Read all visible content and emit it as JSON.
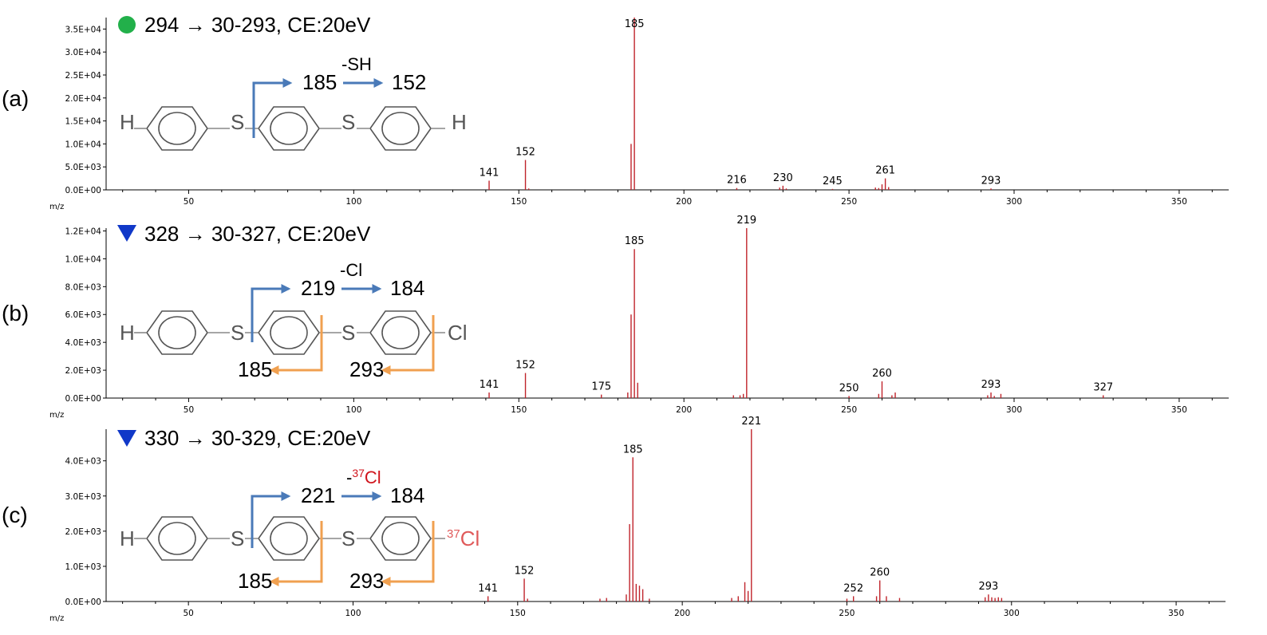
{
  "chart_data": [
    {
      "type": "bar",
      "panel_label": "(a)",
      "title": "294 → 30-293, CE:20eV",
      "marker": "green-circle",
      "xlabel": "m/z",
      "ylabel": "",
      "xlim": [
        25,
        365
      ],
      "ylim": [
        0,
        37500
      ],
      "xticks": [
        50,
        100,
        150,
        200,
        250,
        300,
        350
      ],
      "xtick_labels": [
        "50",
        "100",
        "150",
        "200",
        "250",
        "300",
        "350"
      ],
      "yticks": [
        0,
        5000,
        10000,
        15000,
        20000,
        25000,
        30000,
        35000
      ],
      "ytick_labels": [
        "0.0E+00",
        "5.0E+03",
        "1.0E+04",
        "1.5E+04",
        "2.0E+04",
        "2.5E+04",
        "3.0E+04",
        "3.5E+04"
      ],
      "x": [
        141,
        152,
        153,
        184,
        185,
        216,
        229,
        230,
        231,
        245,
        258,
        259,
        260,
        261,
        262,
        293
      ],
      "values": [
        2000,
        6500,
        300,
        10000,
        37500,
        400,
        500,
        900,
        300,
        200,
        500,
        400,
        1200,
        2500,
        600,
        300
      ],
      "peak_labels": [
        {
          "x": 141,
          "text": "141"
        },
        {
          "x": 152,
          "text": "152"
        },
        {
          "x": 185,
          "text": "185"
        },
        {
          "x": 216,
          "text": "216"
        },
        {
          "x": 230,
          "text": "230"
        },
        {
          "x": 245,
          "text": "245"
        },
        {
          "x": 261,
          "text": "261"
        },
        {
          "x": 293,
          "text": "293"
        }
      ],
      "structure": {
        "left_atom": "H",
        "linker1": "S",
        "linker2": "S",
        "right_atom": "H",
        "fragment_path": [
          "185",
          "152"
        ],
        "loss_label": "-SH",
        "orange_labels": []
      }
    },
    {
      "type": "bar",
      "panel_label": "(b)",
      "title": "328 → 30-327, CE:20eV",
      "marker": "blue-triangle",
      "xlabel": "m/z",
      "ylabel": "",
      "xlim": [
        25,
        365
      ],
      "ylim": [
        0,
        12200
      ],
      "xticks": [
        50,
        100,
        150,
        200,
        250,
        300,
        350
      ],
      "xtick_labels": [
        "50",
        "100",
        "150",
        "200",
        "250",
        "300",
        "350"
      ],
      "yticks": [
        0,
        2000,
        4000,
        6000,
        8000,
        10000,
        12000
      ],
      "ytick_labels": [
        "0.0E+00",
        "2.0E+03",
        "4.0E+03",
        "6.0E+03",
        "8.0E+03",
        "1.0E+04",
        "1.2E+04"
      ],
      "x": [
        141,
        152,
        175,
        183,
        184,
        185,
        186,
        215,
        217,
        218,
        219,
        250,
        259,
        260,
        263,
        264,
        292,
        293,
        294,
        296,
        327
      ],
      "values": [
        400,
        1800,
        250,
        400,
        6000,
        10700,
        1100,
        200,
        200,
        300,
        12200,
        150,
        300,
        1200,
        200,
        400,
        200,
        400,
        150,
        300,
        200
      ],
      "peak_labels": [
        {
          "x": 141,
          "text": "141"
        },
        {
          "x": 152,
          "text": "152"
        },
        {
          "x": 175,
          "text": "175"
        },
        {
          "x": 185,
          "text": "185"
        },
        {
          "x": 219,
          "text": "219"
        },
        {
          "x": 250,
          "text": "250"
        },
        {
          "x": 260,
          "text": "260"
        },
        {
          "x": 293,
          "text": "293"
        },
        {
          "x": 327,
          "text": "327"
        }
      ],
      "structure": {
        "left_atom": "H",
        "linker1": "S",
        "linker2": "S",
        "right_atom": "Cl",
        "fragment_path": [
          "219",
          "184"
        ],
        "loss_label": "-Cl",
        "orange_labels": [
          "185",
          "293"
        ]
      }
    },
    {
      "type": "bar",
      "panel_label": "(c)",
      "title": "330 → 30-329, CE:20eV",
      "marker": "blue-triangle",
      "xlabel": "m/z",
      "ylabel": "",
      "xlim": [
        25,
        365
      ],
      "ylim": [
        0,
        4900
      ],
      "xticks": [
        50,
        100,
        150,
        200,
        250,
        300,
        350
      ],
      "xtick_labels": [
        "50",
        "100",
        "150",
        "200",
        "250",
        "300",
        "350"
      ],
      "yticks": [
        0,
        1000,
        2000,
        3000,
        4000
      ],
      "ytick_labels": [
        "0.0E+00",
        "1.0E+03",
        "2.0E+03",
        "3.0E+03",
        "4.0E+03"
      ],
      "x": [
        141,
        152,
        153,
        175,
        177,
        183,
        184,
        185,
        186,
        187,
        188,
        190,
        215,
        217,
        219,
        220,
        221,
        250,
        252,
        259,
        260,
        262,
        266,
        292,
        293,
        294,
        295,
        296,
        297
      ],
      "values": [
        150,
        650,
        80,
        80,
        100,
        200,
        2200,
        4100,
        500,
        450,
        350,
        80,
        100,
        150,
        550,
        300,
        4900,
        80,
        150,
        150,
        600,
        150,
        100,
        120,
        200,
        120,
        100,
        120,
        100
      ],
      "peak_labels": [
        {
          "x": 141,
          "text": "141"
        },
        {
          "x": 152,
          "text": "152"
        },
        {
          "x": 185,
          "text": "185"
        },
        {
          "x": 221,
          "text": "221"
        },
        {
          "x": 252,
          "text": "252"
        },
        {
          "x": 260,
          "text": "260"
        },
        {
          "x": 293,
          "text": "293"
        }
      ],
      "structure": {
        "left_atom": "H",
        "linker1": "S",
        "linker2": "S",
        "right_atom_sup": "37",
        "right_atom": "Cl",
        "fragment_path": [
          "221",
          "184"
        ],
        "loss_label_prefix": "-",
        "loss_label_sup": "37",
        "loss_label": "Cl",
        "orange_labels": [
          "185",
          "293"
        ]
      }
    }
  ]
}
